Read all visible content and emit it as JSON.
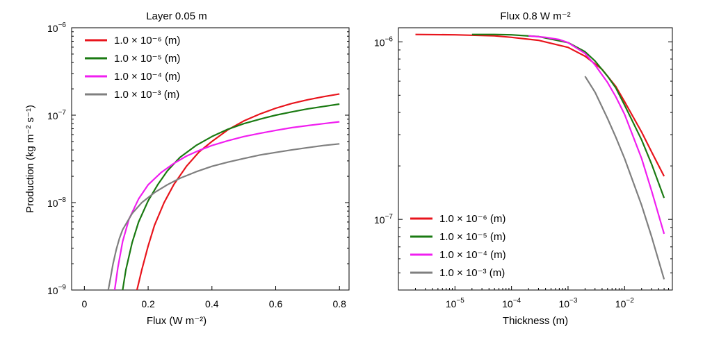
{
  "chart_data": [
    {
      "type": "line",
      "title": "Layer 0.05 m",
      "xlabel": "Flux (W m⁻²)",
      "ylabel": "Production (kg m⁻² s⁻¹)",
      "xlim": [
        -0.04,
        0.83
      ],
      "ylim": [
        1e-09,
        1e-06
      ],
      "xscale": "linear",
      "yscale": "log",
      "xticks": [
        0,
        0.2,
        0.4,
        0.6,
        0.8
      ],
      "xtick_labels": [
        "0",
        "0.2",
        "0.4",
        "0.6",
        "0.8"
      ],
      "yticks": [
        1e-09,
        1e-08,
        1e-07,
        1e-06
      ],
      "ytick_labels": [
        {
          "base": "10",
          "exp": "−9"
        },
        {
          "base": "10",
          "exp": "−8"
        },
        {
          "base": "10",
          "exp": "−7"
        },
        {
          "base": "10",
          "exp": "−6"
        }
      ],
      "legend_position": "top-left",
      "series": [
        {
          "name": "1.0 × 10⁻⁶ (m)",
          "color": "#e8141c",
          "x": [
            0.165,
            0.18,
            0.2,
            0.22,
            0.25,
            0.28,
            0.32,
            0.36,
            0.4,
            0.45,
            0.5,
            0.55,
            0.6,
            0.65,
            0.7,
            0.75,
            0.8
          ],
          "y": [
            1e-09,
            1.7e-09,
            3.2e-09,
            5.5e-09,
            1e-08,
            1.6e-08,
            2.6e-08,
            3.8e-08,
            5e-08,
            6.8e-08,
            8.6e-08,
            1.03e-07,
            1.2e-07,
            1.36e-07,
            1.5e-07,
            1.63e-07,
            1.75e-07
          ]
        },
        {
          "name": "1.0 × 10⁻⁵ (m)",
          "color": "#1a7a12",
          "x": [
            0.12,
            0.13,
            0.15,
            0.17,
            0.2,
            0.23,
            0.26,
            0.3,
            0.35,
            0.4,
            0.45,
            0.5,
            0.55,
            0.6,
            0.65,
            0.7,
            0.75,
            0.8
          ],
          "y": [
            1e-09,
            1.7e-09,
            3.5e-09,
            6e-09,
            1.05e-08,
            1.6e-08,
            2.3e-08,
            3.3e-08,
            4.5e-08,
            5.7e-08,
            6.9e-08,
            8e-08,
            9e-08,
            1e-07,
            1.09e-07,
            1.18e-07,
            1.26e-07,
            1.34e-07
          ]
        },
        {
          "name": "1.0 × 10⁻⁴ (m)",
          "color": "#f01ef0",
          "x": [
            0.095,
            0.105,
            0.12,
            0.14,
            0.17,
            0.2,
            0.24,
            0.28,
            0.32,
            0.36,
            0.4,
            0.45,
            0.5,
            0.55,
            0.6,
            0.65,
            0.7,
            0.75,
            0.8
          ],
          "y": [
            1e-09,
            1.8e-09,
            3.6e-09,
            6.5e-09,
            1.1e-08,
            1.6e-08,
            2.2e-08,
            2.8e-08,
            3.4e-08,
            3.95e-08,
            4.5e-08,
            5.1e-08,
            5.7e-08,
            6.2e-08,
            6.7e-08,
            7.2e-08,
            7.6e-08,
            8e-08,
            8.4e-08
          ]
        },
        {
          "name": "1.0 × 10⁻³ (m)",
          "color": "#7f7f7f",
          "x": [
            0.075,
            0.08,
            0.09,
            0.1,
            0.11,
            0.12,
            0.15,
            0.18,
            0.22,
            0.26,
            0.3,
            0.35,
            0.4,
            0.45,
            0.5,
            0.55,
            0.6,
            0.65,
            0.7,
            0.75,
            0.8
          ],
          "y": [
            1e-09,
            1.25e-09,
            2e-09,
            2.9e-09,
            3.9e-09,
            4.9e-09,
            7.5e-09,
            1e-08,
            1.3e-08,
            1.6e-08,
            1.9e-08,
            2.25e-08,
            2.6e-08,
            2.9e-08,
            3.2e-08,
            3.5e-08,
            3.75e-08,
            4e-08,
            4.25e-08,
            4.5e-08,
            4.7e-08
          ]
        }
      ]
    },
    {
      "type": "line",
      "title": "Flux 0.8 W m⁻²",
      "xlabel": "Thickness (m)",
      "ylabel": "",
      "xlim": [
        1e-06,
        0.07
      ],
      "ylim": [
        4e-08,
        1.2e-06
      ],
      "xscale": "log",
      "yscale": "log",
      "xticks": [
        1e-05,
        0.0001,
        0.001,
        0.01
      ],
      "xtick_labels": [
        {
          "base": "10",
          "exp": "−5"
        },
        {
          "base": "10",
          "exp": "−4"
        },
        {
          "base": "10",
          "exp": "−3"
        },
        {
          "base": "10",
          "exp": "−2"
        }
      ],
      "yticks": [
        1e-07,
        1e-06
      ],
      "ytick_labels": [
        {
          "base": "10",
          "exp": "−7"
        },
        {
          "base": "10",
          "exp": "−6"
        }
      ],
      "legend_position": "bottom-left",
      "series": [
        {
          "name": "1.0 × 10⁻⁶ (m)",
          "color": "#e8141c",
          "x": [
            2e-06,
            1e-05,
            5e-05,
            0.0001,
            0.0003,
            0.001,
            0.002,
            0.004,
            0.007,
            0.01,
            0.02,
            0.03,
            0.05
          ],
          "y": [
            1.1e-06,
            1.095e-06,
            1.08e-06,
            1.06e-06,
            1.02e-06,
            9.3e-07,
            8.3e-07,
            7e-07,
            5.6e-07,
            4.6e-07,
            3.1e-07,
            2.4e-07,
            1.75e-07
          ]
        },
        {
          "name": "1.0 × 10⁻⁵ (m)",
          "color": "#1a7a12",
          "x": [
            2e-05,
            5e-05,
            0.0001,
            0.0003,
            0.001,
            0.002,
            0.003,
            0.005,
            0.007,
            0.01,
            0.02,
            0.03,
            0.05
          ],
          "y": [
            1.1e-06,
            1.1e-06,
            1.095e-06,
            1.07e-06,
            9.9e-07,
            8.8e-07,
            7.8e-07,
            6.4e-07,
            5.5e-07,
            4.4e-07,
            2.8e-07,
            2.05e-07,
            1.32e-07
          ]
        },
        {
          "name": "1.0 × 10⁻⁴ (m)",
          "color": "#f01ef0",
          "x": [
            0.0002,
            0.0004,
            0.0007,
            0.001,
            0.002,
            0.003,
            0.005,
            0.007,
            0.01,
            0.02,
            0.03,
            0.05
          ],
          "y": [
            1.08e-06,
            1.06e-06,
            1.03e-06,
            9.9e-07,
            8.6e-07,
            7.4e-07,
            5.9e-07,
            4.9e-07,
            3.9e-07,
            2.2e-07,
            1.45e-07,
            8.3e-08
          ]
        },
        {
          "name": "1.0 × 10⁻³ (m)",
          "color": "#7f7f7f",
          "x": [
            0.002,
            0.003,
            0.005,
            0.007,
            0.01,
            0.02,
            0.03,
            0.05
          ],
          "y": [
            6.4e-07,
            5.2e-07,
            3.7e-07,
            2.9e-07,
            2.2e-07,
            1.2e-07,
            8e-08,
            4.6e-08
          ]
        }
      ]
    }
  ]
}
